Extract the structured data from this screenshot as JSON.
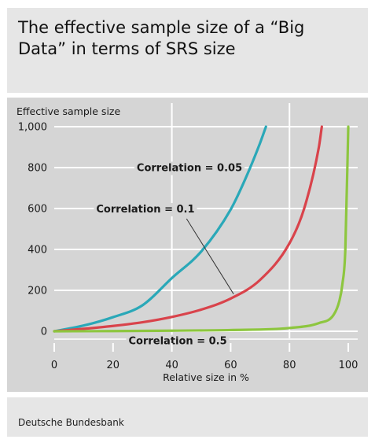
{
  "chart_data": {
    "type": "line",
    "title": "The effective sample size of a “Big Data” in terms of SRS size",
    "xlabel": "Relative size in %",
    "ylabel": "Effective sample size",
    "xlim": [
      0,
      100
    ],
    "ylim": [
      0,
      1000
    ],
    "x_ticks": [
      "0",
      "20",
      "40",
      "60",
      "80",
      "100"
    ],
    "y_ticks": [
      "0",
      "200",
      "400",
      "600",
      "800",
      "1,000"
    ],
    "grid": "white vertical lines at 40 and 80; horizontal lines at each y tick",
    "series": [
      {
        "name": "Correlation = 0.05",
        "color": "#2aa8b8",
        "x": [
          0,
          10,
          20,
          30,
          40,
          50,
          60,
          65,
          70,
          72
        ],
        "y": [
          0,
          28,
          69,
          127,
          260,
          390,
          595,
          745,
          920,
          1000
        ]
      },
      {
        "name": "Correlation = 0.1",
        "color": "#d9434b",
        "x": [
          0,
          10,
          20,
          30,
          40,
          50,
          60,
          70,
          80,
          85,
          90,
          91
        ],
        "y": [
          0,
          12,
          26,
          44,
          70,
          106,
          160,
          251,
          430,
          600,
          900,
          1000
        ]
      },
      {
        "name": "Correlation = 0.5",
        "color": "#8dc63f",
        "x": [
          0,
          20,
          40,
          60,
          80,
          90,
          95,
          97,
          98,
          99,
          100
        ],
        "y": [
          0,
          1,
          3,
          6,
          16,
          40,
          80,
          150,
          230,
          400,
          1000
        ]
      }
    ],
    "annotations": [
      {
        "text": "Correlation = 0.05",
        "x": 46,
        "y": 800
      },
      {
        "text": "Correlation = 0.1",
        "x": 31,
        "y": 598
      },
      {
        "text": "Correlation = 0.5",
        "x": 42,
        "y": -46
      }
    ]
  },
  "source": "Deutsche Bundesbank"
}
